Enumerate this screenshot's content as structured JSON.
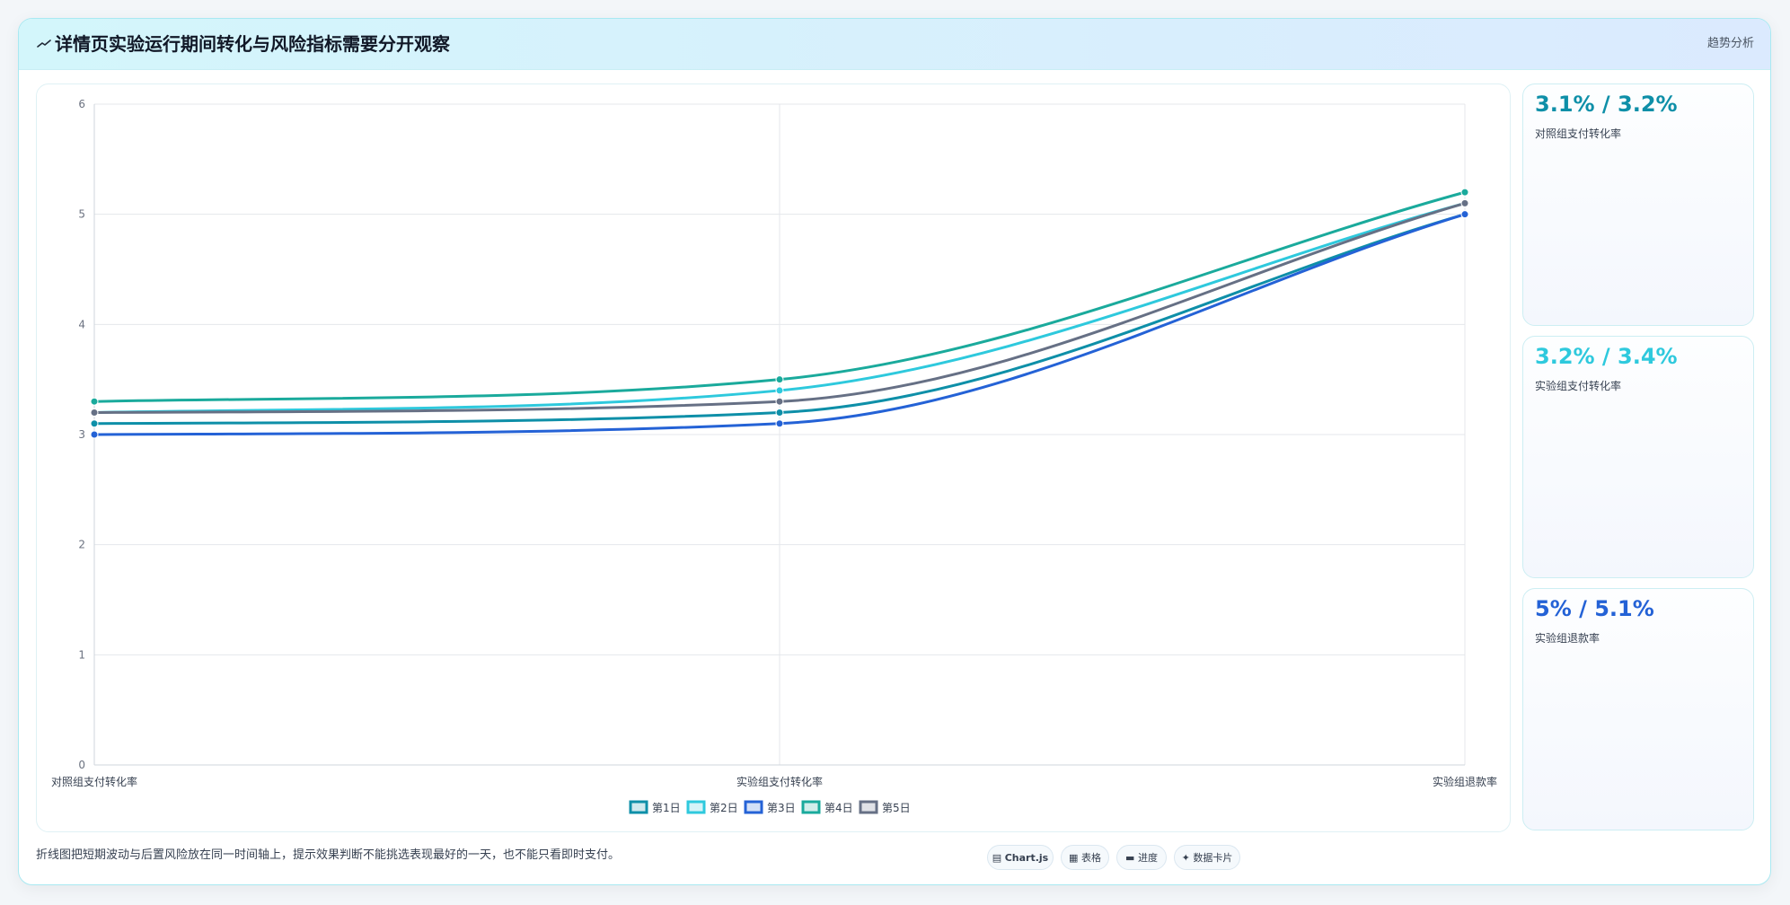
{
  "header": {
    "title": "详情页实验运行期间转化与风险指标需要分开观察",
    "tag": "趋势分析",
    "icon": "trend-line-icon"
  },
  "chart_data": {
    "type": "line",
    "categories": [
      "对照组支付转化率",
      "实验组支付转化率",
      "实验组退款率"
    ],
    "ylim": [
      0,
      6
    ],
    "yticks": [
      "0",
      "1",
      "2",
      "3",
      "4",
      "5",
      "6"
    ],
    "grid": true,
    "legend_position": "bottom",
    "series": [
      {
        "name": "第1日",
        "values": [
          3.1,
          3.2,
          5.0
        ],
        "color": "#0e8fa8"
      },
      {
        "name": "第2日",
        "values": [
          3.2,
          3.4,
          5.1
        ],
        "color": "#2ec9dd"
      },
      {
        "name": "第3日",
        "values": [
          3.0,
          3.1,
          5.0
        ],
        "color": "#2462d6"
      },
      {
        "name": "第4日",
        "values": [
          3.3,
          3.5,
          5.2
        ],
        "color": "#1aaa9c"
      },
      {
        "name": "第5日",
        "values": [
          3.2,
          3.3,
          5.1
        ],
        "color": "#667085"
      }
    ]
  },
  "cards": [
    {
      "value": "3.1% / 3.2%",
      "label": "对照组支付转化率",
      "color": "#0e8fa8"
    },
    {
      "value": "3.2% / 3.4%",
      "label": "实验组支付转化率",
      "color": "#2ec9dd"
    },
    {
      "value": "5% / 5.1%",
      "label": "实验组退款率",
      "color": "#2462d6"
    }
  ],
  "footer": {
    "note": "折线图把短期波动与后置风险放在同一时间轴上，提示效果判断不能挑选表现最好的一天，也不能只看即时支付。",
    "chips": [
      {
        "icon": "chart-icon",
        "glyph": "▤",
        "label": "Chart.js",
        "bold": true
      },
      {
        "icon": "table-icon",
        "glyph": "▦",
        "label": "表格",
        "bold": false
      },
      {
        "icon": "progress-icon",
        "glyph": "▬",
        "label": "进度",
        "bold": false
      },
      {
        "icon": "sparkle-icon",
        "glyph": "✦",
        "label": "数据卡片",
        "bold": false
      }
    ]
  }
}
